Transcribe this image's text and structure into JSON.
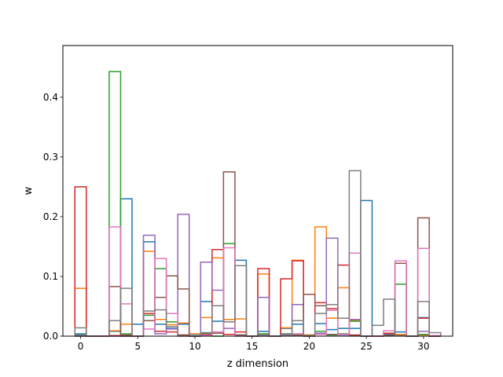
{
  "chart_data": {
    "type": "histogram-step",
    "xlabel": "z dimension",
    "ylabel": "w",
    "xlim": [
      -1.55,
      32.55
    ],
    "ylim": [
      0,
      0.4865
    ],
    "xticks": [
      0,
      5,
      10,
      15,
      20,
      25,
      30
    ],
    "xtick_labels": [
      "0",
      "5",
      "10",
      "15",
      "20",
      "25",
      "30"
    ],
    "yticks": [
      0.0,
      0.1,
      0.2,
      0.3,
      0.4
    ],
    "ytick_labels": [
      "0.0",
      "0.1",
      "0.2",
      "0.3",
      "0.4"
    ],
    "bin_start": 0,
    "bin_width": 1,
    "series": [
      {
        "color": "#1f77b4",
        "values": [
          0.004,
          0,
          0,
          0.008,
          0.23,
          0.02,
          0.158,
          0.02,
          0.013,
          0.02,
          0.003,
          0.058,
          0.025,
          0.024,
          0.127,
          0,
          0.008,
          0,
          0.013,
          0.02,
          0.002,
          0.021,
          0.011,
          0.013,
          0.013,
          0.227,
          0,
          0.004,
          0.007,
          0,
          0.031,
          0
        ]
      },
      {
        "color": "#ff7f0e",
        "values": [
          0.08,
          0,
          0,
          0.009,
          0.02,
          0,
          0.142,
          0.028,
          0.019,
          0.022,
          0.004,
          0.031,
          0.131,
          0.028,
          0.029,
          0,
          0.104,
          0,
          0.014,
          0.127,
          0.002,
          0.183,
          0.03,
          0.081,
          0.026,
          0,
          0,
          0.001,
          0.003,
          0,
          0.002,
          0
        ]
      },
      {
        "color": "#2ca02c",
        "values": [
          0.002,
          0,
          0,
          0.443,
          0.004,
          0,
          0.035,
          0.113,
          0.024,
          0.002,
          0,
          0.005,
          0,
          0.155,
          0.002,
          0,
          0.004,
          0,
          0.004,
          0.002,
          0.001,
          0.008,
          0.002,
          0.004,
          0.025,
          0,
          0,
          0.002,
          0.087,
          0,
          0.003,
          0
        ]
      },
      {
        "color": "#d62728",
        "values": [
          0.25,
          0,
          0,
          0.001,
          0,
          0,
          0.038,
          0.008,
          0.007,
          0.002,
          0,
          0.003,
          0.145,
          0.003,
          0.007,
          0,
          0.113,
          0,
          0.096,
          0.126,
          0,
          0.056,
          0.046,
          0.119,
          0.002,
          0,
          0,
          0.005,
          0.001,
          0,
          0.03,
          0
        ]
      },
      {
        "color": "#9467bd",
        "values": [
          0.001,
          0,
          0,
          0,
          0,
          0,
          0.169,
          0.004,
          0.012,
          0.204,
          0,
          0.124,
          0.077,
          0.013,
          0.002,
          0,
          0.065,
          0,
          0.003,
          0.053,
          0,
          0.005,
          0.164,
          0.002,
          0.028,
          0,
          0,
          0.001,
          0.001,
          0,
          0.008,
          0
        ]
      },
      {
        "color": "#8c564b",
        "values": [
          0,
          0,
          0,
          0.083,
          0.002,
          0,
          0.026,
          0.065,
          0.101,
          0.079,
          0,
          0.001,
          0.005,
          0.275,
          0.002,
          0,
          0.002,
          0,
          0.001,
          0.002,
          0.07,
          0.051,
          0.003,
          0.003,
          0.001,
          0,
          0,
          0.002,
          0.122,
          0,
          0.198,
          0
        ]
      },
      {
        "color": "#e377c2",
        "values": [
          0,
          0,
          0,
          0.183,
          0.054,
          0,
          0.012,
          0.13,
          0.038,
          0,
          0,
          0.002,
          0.007,
          0.148,
          0,
          0,
          0,
          0,
          0.001,
          0.004,
          0,
          0.003,
          0.043,
          0.003,
          0.139,
          0,
          0,
          0.009,
          0.126,
          0,
          0.147,
          0.001
        ]
      },
      {
        "color": "#7f7f7f",
        "values": [
          0.014,
          0,
          0,
          0.026,
          0.08,
          0,
          0.042,
          0.044,
          0.016,
          0.001,
          0,
          0.006,
          0.051,
          0.024,
          0.118,
          0,
          0.002,
          0,
          0.002,
          0.026,
          0.001,
          0.038,
          0.053,
          0.03,
          0.277,
          0,
          0.018,
          0.062,
          0.001,
          0,
          0.058,
          0.006
        ]
      }
    ]
  }
}
